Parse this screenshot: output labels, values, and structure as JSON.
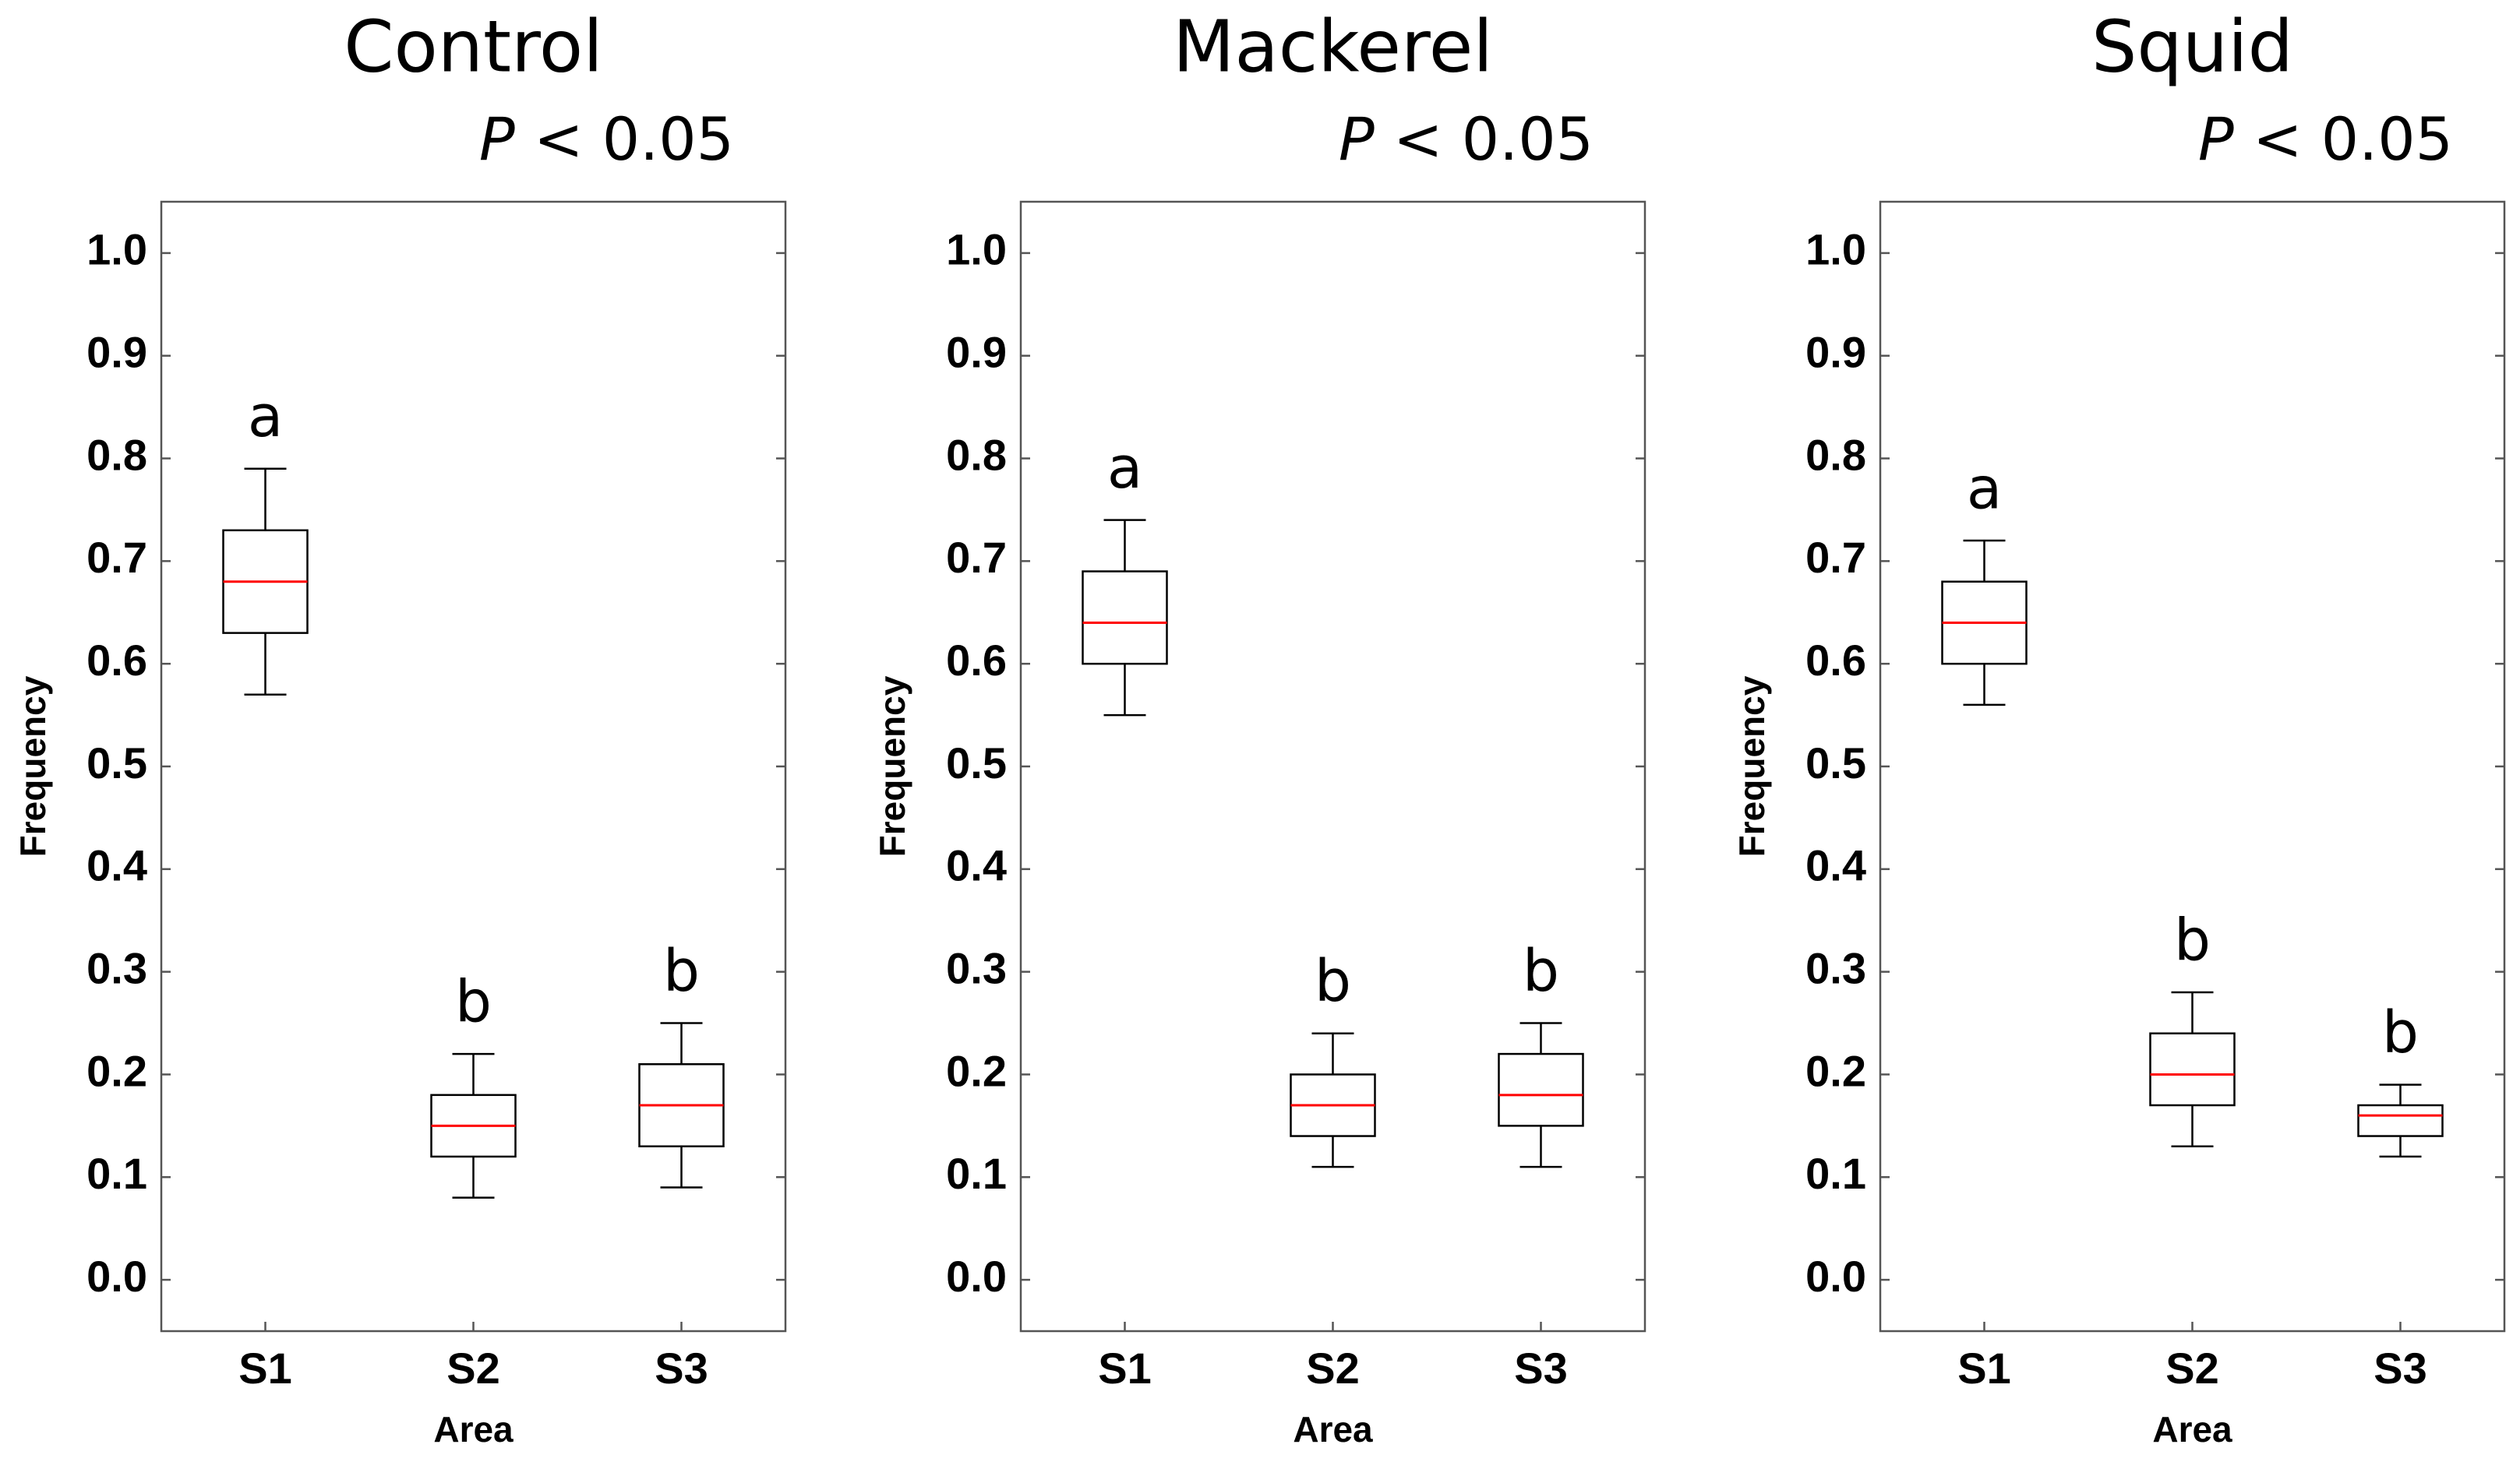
{
  "chart_data": [
    {
      "type": "box",
      "title": "Control",
      "stat_symbol": "P",
      "stat_text": "< 0.05",
      "categories": [
        "S1",
        "S2",
        "S3"
      ],
      "xlabel": "Area",
      "ylabel": "Frequency",
      "whisker_low": [
        0.57,
        0.08,
        0.09
      ],
      "q1": [
        0.63,
        0.12,
        0.13
      ],
      "median": [
        0.68,
        0.15,
        0.17
      ],
      "q3": [
        0.73,
        0.18,
        0.21
      ],
      "whisker_high": [
        0.79,
        0.22,
        0.25
      ],
      "letters": [
        "a",
        "b",
        "b"
      ],
      "ylim": [
        -0.05,
        1.05
      ],
      "yticks": [
        {
          "value": 0,
          "label": "0.0"
        },
        0.1,
        0.2,
        0.3,
        0.4,
        0.5,
        0.6,
        0.7,
        0.8,
        0.9,
        {
          "value": 1,
          "label": "1.0"
        }
      ],
      "color": "#000000",
      "median_color": "#ff0000"
    },
    {
      "type": "box",
      "title": "Mackerel",
      "stat_symbol": "P",
      "stat_text": "< 0.05",
      "categories": [
        "S1",
        "S2",
        "S3"
      ],
      "xlabel": "Area",
      "ylabel": "Frequency",
      "whisker_low": [
        0.55,
        0.11,
        0.11
      ],
      "q1": [
        0.6,
        0.14,
        0.15
      ],
      "median": [
        0.64,
        0.17,
        0.18
      ],
      "q3": [
        0.69,
        0.2,
        0.22
      ],
      "whisker_high": [
        0.74,
        0.24,
        0.25
      ],
      "letters": [
        "a",
        "b",
        "b"
      ],
      "ylim": [
        -0.05,
        1.05
      ],
      "yticks": [
        {
          "value": 0,
          "label": "0.0"
        },
        0.1,
        0.2,
        0.3,
        0.4,
        0.5,
        0.6,
        0.7,
        0.8,
        0.9,
        {
          "value": 1,
          "label": "1.0"
        }
      ],
      "color": "#000000",
      "median_color": "#ff0000"
    },
    {
      "type": "box",
      "title": "Squid",
      "stat_symbol": "P",
      "stat_text": "< 0.05",
      "categories": [
        "S1",
        "S2",
        "S3"
      ],
      "xlabel": "Area",
      "ylabel": "Frequency",
      "whisker_low": [
        0.56,
        0.13,
        0.12
      ],
      "q1": [
        0.6,
        0.17,
        0.14
      ],
      "median": [
        0.64,
        0.2,
        0.16
      ],
      "q3": [
        0.68,
        0.24,
        0.17
      ],
      "whisker_high": [
        0.72,
        0.28,
        0.19
      ],
      "letters": [
        "a",
        "b",
        "b"
      ],
      "ylim": [
        -0.05,
        1.05
      ],
      "yticks": [
        {
          "value": 0,
          "label": "0.0"
        },
        0.1,
        0.2,
        0.3,
        0.4,
        0.5,
        0.6,
        0.7,
        0.8,
        0.9,
        {
          "value": 1,
          "label": "1.0"
        }
      ],
      "color": "#000000",
      "median_color": "#ff0000"
    }
  ]
}
